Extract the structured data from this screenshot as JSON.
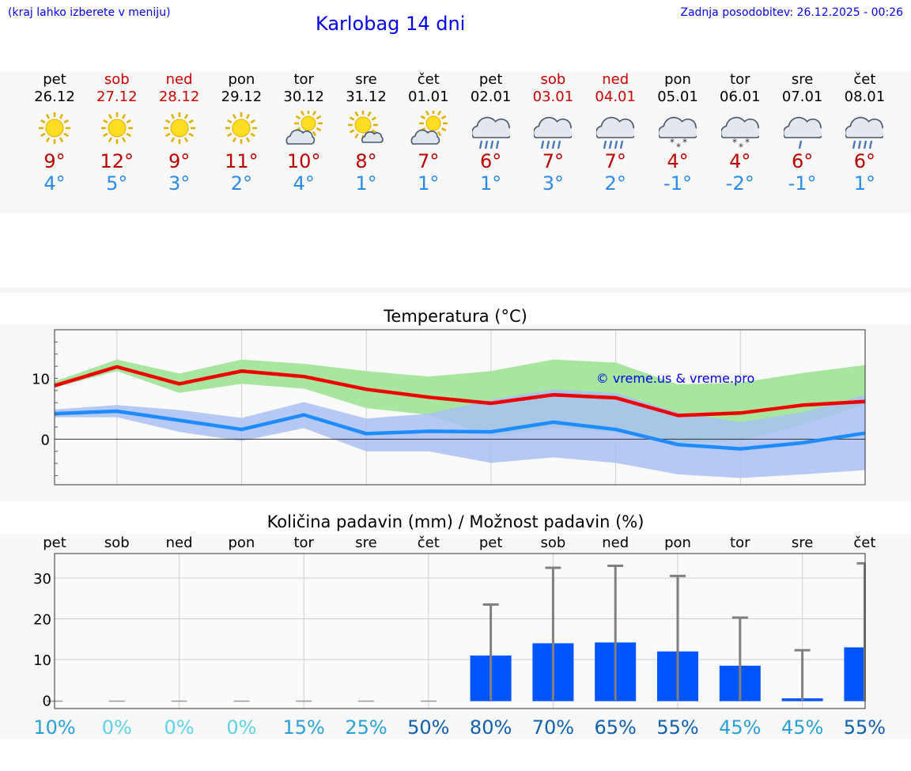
{
  "header": {
    "hint": "(kraj lahko izberete v meniju)",
    "title": "Karlobag 14 dni",
    "updated": "Zadnja posodobitev: 26.12.2025 - 00:26"
  },
  "days": [
    {
      "name": "pet",
      "date": "26.12",
      "weekend": false,
      "icon": "sun-icon",
      "max": "9°",
      "min": "4°"
    },
    {
      "name": "sob",
      "date": "27.12",
      "weekend": true,
      "icon": "sun-icon",
      "max": "12°",
      "min": "5°"
    },
    {
      "name": "ned",
      "date": "28.12",
      "weekend": true,
      "icon": "sun-icon",
      "max": "9°",
      "min": "3°"
    },
    {
      "name": "pon",
      "date": "29.12",
      "weekend": false,
      "icon": "sun-icon",
      "max": "11°",
      "min": "2°"
    },
    {
      "name": "tor",
      "date": "30.12",
      "weekend": false,
      "icon": "sun-cloud-icon",
      "max": "10°",
      "min": "4°"
    },
    {
      "name": "sre",
      "date": "31.12",
      "weekend": false,
      "icon": "sun-small-cloud-icon",
      "max": "8°",
      "min": "1°"
    },
    {
      "name": "čet",
      "date": "01.01",
      "weekend": false,
      "icon": "sun-cloud-icon",
      "max": "7°",
      "min": "1°"
    },
    {
      "name": "pet",
      "date": "02.01",
      "weekend": false,
      "icon": "rain-cloud-icon",
      "max": "6°",
      "min": "1°"
    },
    {
      "name": "sob",
      "date": "03.01",
      "weekend": true,
      "icon": "rain-cloud-icon",
      "max": "7°",
      "min": "3°"
    },
    {
      "name": "ned",
      "date": "04.01",
      "weekend": true,
      "icon": "rain-cloud-icon",
      "max": "7°",
      "min": "2°"
    },
    {
      "name": "pon",
      "date": "05.01",
      "weekend": false,
      "icon": "snow-cloud-icon",
      "max": "4°",
      "min": "-1°"
    },
    {
      "name": "tor",
      "date": "06.01",
      "weekend": false,
      "icon": "snow-cloud-icon",
      "max": "4°",
      "min": "-2°"
    },
    {
      "name": "sre",
      "date": "07.01",
      "weekend": false,
      "icon": "light-rain-cloud-icon",
      "max": "6°",
      "min": "-1°"
    },
    {
      "name": "čet",
      "date": "08.01",
      "weekend": false,
      "icon": "rain-cloud-icon",
      "max": "6°",
      "min": "1°"
    }
  ],
  "colors": {
    "max_line": "#ee0000",
    "min_line": "#1e8bff",
    "max_band": "#a8e6a0",
    "min_band": "#a8c0f2",
    "overlap_band": "#76c0a0",
    "bar": "#0055ff",
    "whisker": "#808080",
    "watermark": "#0000ee"
  },
  "chart_data": [
    {
      "type": "line",
      "title": "Temperatura (°C)",
      "watermark": "© vreme.us & vreme.pro",
      "ylim": [
        -7.5,
        18
      ],
      "yticks": [
        "10",
        "0"
      ],
      "ytick_values": [
        10,
        0
      ],
      "series": [
        {
          "name": "max",
          "values": [
            8.8,
            11.9,
            9.1,
            11.2,
            10.3,
            8.2,
            6.9,
            5.9,
            7.3,
            6.8,
            3.9,
            4.3,
            5.6,
            6.2
          ]
        },
        {
          "name": "min",
          "values": [
            4.2,
            4.6,
            3.1,
            1.6,
            4.0,
            0.9,
            1.3,
            1.2,
            2.8,
            1.6,
            -0.9,
            -1.6,
            -0.6,
            1.0
          ]
        },
        {
          "name": "max_high",
          "values": [
            9.5,
            13.1,
            10.8,
            13.1,
            12.4,
            11.2,
            10.3,
            11.2,
            13.1,
            12.6,
            9.0,
            9.3,
            10.9,
            12.2
          ]
        },
        {
          "name": "max_low",
          "values": [
            8.5,
            11.2,
            7.6,
            9.1,
            8.3,
            5.1,
            4.0,
            0.5,
            1.9,
            1.1,
            -0.6,
            -0.3,
            2.4,
            5.7
          ]
        },
        {
          "name": "min_high",
          "values": [
            4.9,
            5.6,
            4.8,
            3.5,
            6.1,
            3.4,
            4.2,
            6.5,
            8.2,
            7.6,
            4.4,
            2.8,
            4.4,
            7.3
          ]
        },
        {
          "name": "min_low",
          "values": [
            3.6,
            3.6,
            1.2,
            -0.3,
            1.8,
            -2.0,
            -2.0,
            -3.9,
            -3.0,
            -3.9,
            -5.8,
            -6.4,
            -5.8,
            -5.1
          ]
        }
      ]
    },
    {
      "type": "bar",
      "title": "Količina padavin (mm) / Možnost padavin (%)",
      "categories": [
        "pet",
        "sob",
        "ned",
        "pon",
        "tor",
        "sre",
        "čet",
        "pet",
        "sob",
        "ned",
        "pon",
        "tor",
        "sre",
        "čet"
      ],
      "ylim": [
        -2,
        36
      ],
      "yticks": [
        "30",
        "20",
        "10",
        "0"
      ],
      "ytick_values": [
        30,
        20,
        10,
        0
      ],
      "values": [
        0,
        0,
        0,
        0,
        0,
        0,
        0,
        11,
        14,
        14.2,
        12,
        8.5,
        0.5,
        13
      ],
      "upper": [
        0,
        0,
        0,
        0,
        0,
        0,
        0,
        23.5,
        32.5,
        33,
        30.5,
        20.3,
        12.3,
        33.6
      ],
      "probability": [
        "10%",
        "0%",
        "0%",
        "0%",
        "15%",
        "25%",
        "50%",
        "80%",
        "70%",
        "65%",
        "55%",
        "45%",
        "45%",
        "55%"
      ],
      "probability_colors": [
        "#2aa0d6",
        "#5ed2e6",
        "#5ed2e6",
        "#5ed2e6",
        "#2aa0d6",
        "#2aa0d6",
        "#1060b0",
        "#1060b0",
        "#1060b0",
        "#1060b0",
        "#1060b0",
        "#2aa0d6",
        "#2aa0d6",
        "#1060b0"
      ]
    }
  ]
}
